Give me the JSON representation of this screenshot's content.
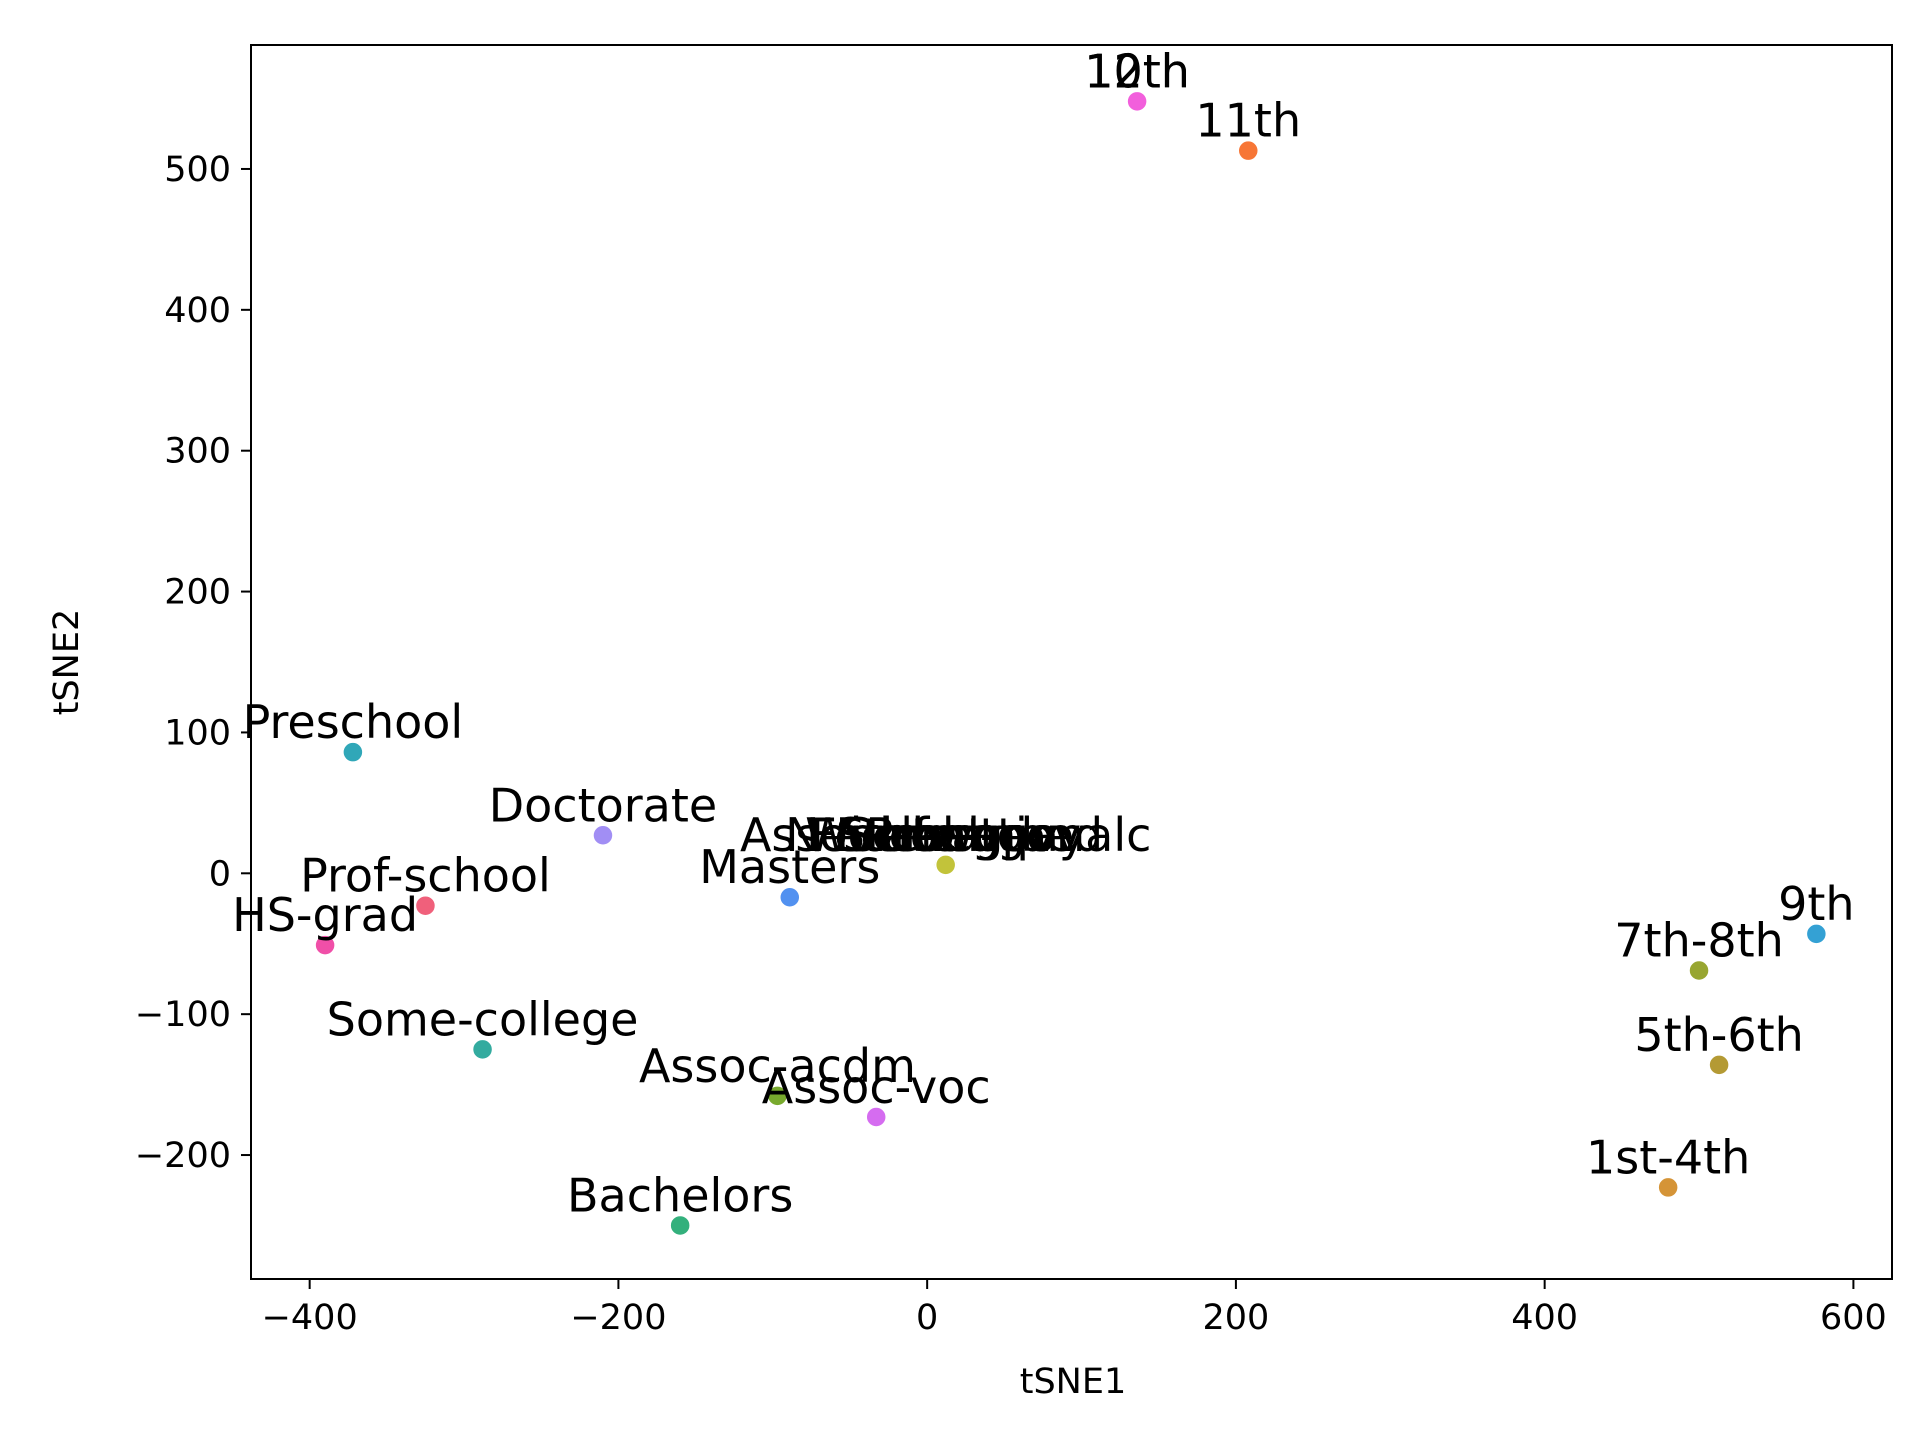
{
  "chart_data": {
    "type": "scatter",
    "title": "",
    "xlabel": "tSNE1",
    "ylabel": "tSNE2",
    "xlim": [
      -438,
      625
    ],
    "ylim": [
      -288,
      588
    ],
    "xticks": [
      -400,
      -200,
      0,
      200,
      400,
      600
    ],
    "yticks": [
      -200,
      -100,
      0,
      100,
      200,
      300,
      400,
      500
    ],
    "xtick_labels": [
      "−400",
      "−200",
      "0",
      "200",
      "400",
      "600"
    ],
    "ytick_labels": [
      "−200",
      "−100",
      "0",
      "100",
      "200",
      "300",
      "400",
      "500"
    ],
    "grid": false,
    "legend": "none",
    "points": [
      {
        "label": "10th",
        "x": 136,
        "y": 548,
        "color": "#f25fdc"
      },
      {
        "label": "12th",
        "x": 136,
        "y": 548,
        "color": "#f25fdc"
      },
      {
        "label": "11th",
        "x": 208,
        "y": 513,
        "color": "#f77636"
      },
      {
        "label": "Preschool",
        "x": -372,
        "y": 86,
        "color": "#30a7b8"
      },
      {
        "label": "Doctorate",
        "x": -210,
        "y": 27,
        "color": "#a18ef4"
      },
      {
        "label": "Masters",
        "x": -89,
        "y": -17,
        "color": "#5291f0"
      },
      {
        "label": "Prof-school",
        "x": -325,
        "y": -23,
        "color": "#f0607b"
      },
      {
        "label": "HS-grad",
        "x": -390,
        "y": -51,
        "color": "#f04fa8"
      },
      {
        "label": "Some-college",
        "x": -288,
        "y": -125,
        "color": "#33ab9f"
      },
      {
        "label": "Assoc-acdm",
        "x": -97,
        "y": -158,
        "color": "#78aa2e"
      },
      {
        "label": "Assoc-voc",
        "x": -33,
        "y": -173,
        "color": "#d56cf0"
      },
      {
        "label": "Bachelors",
        "x": -160,
        "y": -250,
        "color": "#33b07c"
      },
      {
        "label": "9th",
        "x": 576,
        "y": -43,
        "color": "#34a1d4"
      },
      {
        "label": "7th-8th",
        "x": 500,
        "y": -69,
        "color": "#98a631"
      },
      {
        "label": "5th-6th",
        "x": 513,
        "y": -136,
        "color": "#b49a34"
      },
      {
        "label": "1st-4th",
        "x": 480,
        "y": -223,
        "color": "#d59437"
      },
      {
        "label": "Self-emp",
        "x": 11,
        "y": 6,
        "color": "#c2c33a"
      },
      {
        "label": "Federal-gov",
        "x": 12,
        "y": 6,
        "color": "#bdbd38"
      },
      {
        "label": "State-gov",
        "x": 13,
        "y": 6,
        "color": "#555555"
      },
      {
        "label": "Local-gov",
        "x": 12,
        "y": 6,
        "color": "#bdbd38"
      },
      {
        "label": "Private",
        "x": 12,
        "y": 6,
        "color": "#c2c33a"
      },
      {
        "label": "Never-worked",
        "x": 11,
        "y": 6,
        "color": "#bdbd38"
      },
      {
        "label": "Without-pay",
        "x": 12,
        "y": 6,
        "color": "#c2c33a"
      },
      {
        "label": "Assoc-vocationalc",
        "x": 12,
        "y": 6,
        "color": "#c2c33a"
      }
    ]
  }
}
